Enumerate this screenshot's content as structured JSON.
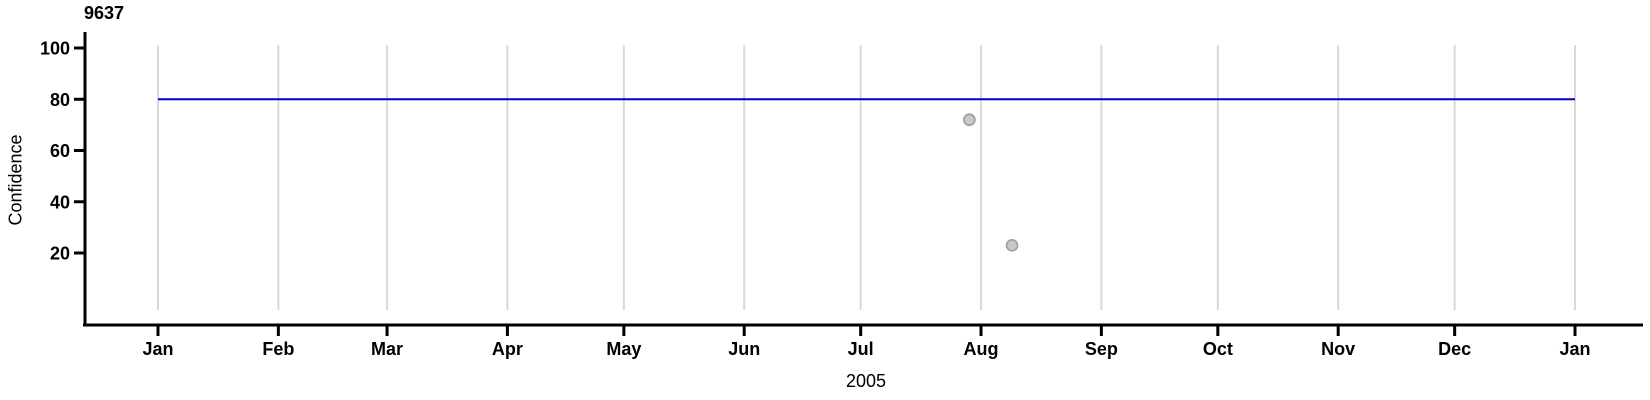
{
  "chart_data": {
    "type": "scatter",
    "title": "9637",
    "ylabel": "Confidence",
    "xlabel": "2005",
    "x_tick_labels": [
      "Jan",
      "Feb",
      "Mar",
      "Apr",
      "May",
      "Jun",
      "Jul",
      "Aug",
      "Sep",
      "Oct",
      "Nov",
      "Dec",
      "Jan"
    ],
    "month_day_offsets": [
      0,
      31,
      59,
      90,
      120,
      151,
      181,
      212,
      243,
      273,
      304,
      334,
      365
    ],
    "x_range_days": [
      0,
      365
    ],
    "y_tick_labels": [
      "100",
      "80",
      "60",
      "40",
      "20"
    ],
    "y_tick_values": [
      100,
      80,
      60,
      40,
      20
    ],
    "ylim": [
      0,
      100
    ],
    "grid": "vertical-monthly",
    "legend": "none",
    "reference_line": {
      "value": 80,
      "span_days": [
        0,
        365
      ]
    },
    "points": [
      {
        "date": "2005-07-29",
        "day_of_year": 209,
        "value": 72
      },
      {
        "date": "2005-08-09",
        "day_of_year": 220,
        "value": 23
      }
    ],
    "colors": {
      "axis": "#000000",
      "text": "#000000",
      "gridline": "#d9d9d9",
      "reference_line": "#0000cc",
      "point_fill": "#c9c9c9",
      "point_stroke": "#a0a0a0",
      "background": "#ffffff"
    }
  }
}
